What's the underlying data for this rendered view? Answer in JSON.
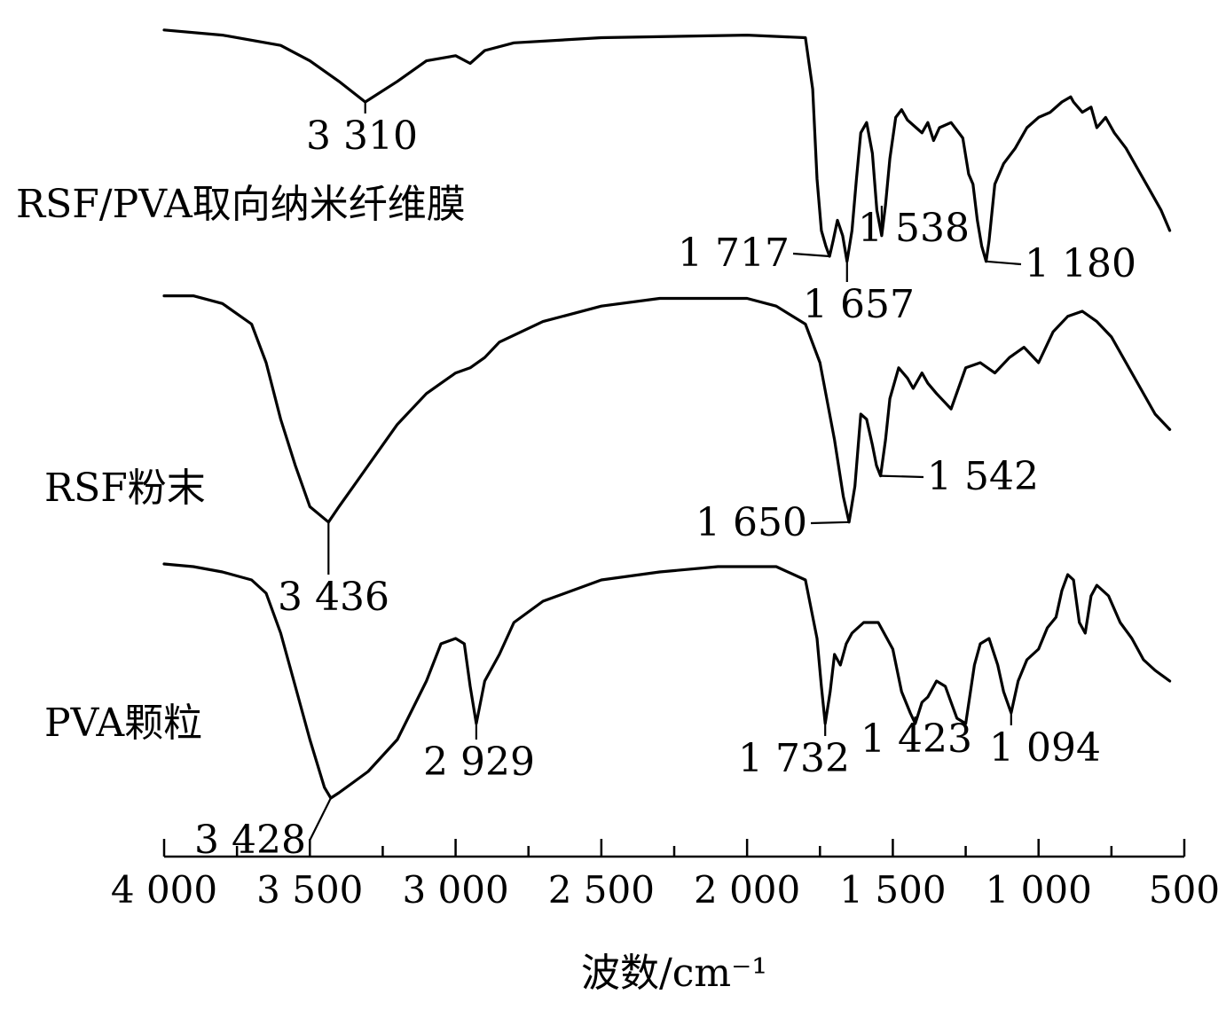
{
  "chart_data": {
    "type": "line",
    "xlabel": "波数/cm⁻¹",
    "ylabel": "",
    "xlim": [
      4000,
      500
    ],
    "x_reversed": true,
    "grid": false,
    "xticks": [
      4000,
      3500,
      3000,
      2500,
      2000,
      1500,
      1000,
      500
    ],
    "xtick_labels": [
      "4 000",
      "3 500",
      "3 000",
      "2 500",
      "2 000",
      "1 500",
      "1 000",
      "500"
    ],
    "series": [
      {
        "name": "RSF/PVA取向纳米纤维膜",
        "x": [
          4000,
          3800,
          3600,
          3500,
          3400,
          3310,
          3200,
          3100,
          3000,
          2950,
          2900,
          2800,
          2500,
          2000,
          1800,
          1775,
          1760,
          1745,
          1730,
          1717,
          1705,
          1690,
          1672,
          1657,
          1640,
          1625,
          1610,
          1590,
          1570,
          1555,
          1538,
          1525,
          1510,
          1490,
          1470,
          1450,
          1420,
          1400,
          1380,
          1360,
          1340,
          1300,
          1260,
          1240,
          1225,
          1210,
          1195,
          1180,
          1170,
          1150,
          1120,
          1080,
          1040,
          1000,
          960,
          920,
          890,
          880,
          850,
          820,
          800,
          770,
          740,
          700,
          660,
          620,
          580,
          550
        ],
        "y": [
          98,
          96,
          92,
          86,
          78,
          70,
          78,
          86,
          88,
          85,
          90,
          93,
          95,
          96,
          95,
          75,
          40,
          20,
          14,
          10,
          16,
          24,
          18,
          8,
          20,
          40,
          58,
          62,
          50,
          28,
          18,
          30,
          48,
          64,
          67,
          63,
          60,
          58,
          62,
          55,
          60,
          62,
          56,
          42,
          38,
          24,
          14,
          8,
          16,
          38,
          46,
          52,
          60,
          64,
          66,
          70,
          72,
          70,
          66,
          68,
          60,
          64,
          58,
          52,
          44,
          36,
          28,
          20
        ]
      },
      {
        "name": "RSF粉末",
        "x": [
          4000,
          3900,
          3800,
          3700,
          3650,
          3600,
          3550,
          3500,
          3436,
          3400,
          3350,
          3300,
          3250,
          3200,
          3150,
          3100,
          3050,
          3000,
          2950,
          2900,
          2850,
          2700,
          2500,
          2300,
          2000,
          1900,
          1800,
          1750,
          1700,
          1670,
          1650,
          1630,
          1610,
          1590,
          1570,
          1556,
          1542,
          1525,
          1510,
          1480,
          1450,
          1430,
          1400,
          1380,
          1350,
          1300,
          1250,
          1200,
          1150,
          1100,
          1050,
          1000,
          950,
          900,
          850,
          800,
          750,
          700,
          650,
          600,
          550
        ],
        "y": [
          96,
          96,
          93,
          85,
          70,
          48,
          30,
          14,
          8,
          14,
          22,
          30,
          38,
          46,
          52,
          58,
          62,
          66,
          68,
          72,
          78,
          86,
          92,
          95,
          95,
          92,
          85,
          70,
          40,
          18,
          8,
          22,
          50,
          48,
          38,
          30,
          26,
          40,
          56,
          68,
          64,
          60,
          66,
          62,
          58,
          52,
          68,
          70,
          66,
          72,
          76,
          70,
          82,
          88,
          90,
          86,
          80,
          70,
          60,
          50,
          44
        ]
      },
      {
        "name": "PVA颗粒",
        "x": [
          4000,
          3900,
          3800,
          3700,
          3650,
          3600,
          3550,
          3500,
          3450,
          3428,
          3400,
          3350,
          3300,
          3200,
          3100,
          3050,
          3000,
          2970,
          2950,
          2929,
          2900,
          2850,
          2800,
          2700,
          2500,
          2300,
          2100,
          2000,
          1900,
          1800,
          1760,
          1745,
          1732,
          1715,
          1700,
          1680,
          1660,
          1640,
          1600,
          1550,
          1500,
          1470,
          1440,
          1423,
          1400,
          1380,
          1350,
          1320,
          1300,
          1280,
          1250,
          1220,
          1200,
          1170,
          1140,
          1120,
          1094,
          1070,
          1040,
          1000,
          970,
          940,
          920,
          900,
          880,
          860,
          840,
          820,
          800,
          760,
          720,
          680,
          640,
          600,
          550
        ],
        "y": [
          96,
          95,
          93,
          90,
          85,
          70,
          50,
          30,
          12,
          8,
          10,
          14,
          18,
          30,
          52,
          66,
          68,
          66,
          50,
          36,
          52,
          62,
          74,
          82,
          90,
          93,
          95,
          95,
          95,
          90,
          68,
          50,
          36,
          48,
          62,
          58,
          66,
          70,
          74,
          74,
          64,
          48,
          40,
          36,
          44,
          46,
          52,
          50,
          44,
          38,
          36,
          58,
          66,
          68,
          58,
          48,
          40,
          52,
          60,
          64,
          72,
          76,
          86,
          92,
          90,
          74,
          70,
          84,
          88,
          84,
          74,
          68,
          60,
          56,
          52
        ]
      }
    ],
    "annotations": [
      {
        "series": "RSF/PVA取向纳米纤维膜",
        "x": 3310,
        "label": "3 310"
      },
      {
        "series": "RSF/PVA取向纳米纤维膜",
        "x": 1717,
        "label": "1 717"
      },
      {
        "series": "RSF/PVA取向纳米纤维膜",
        "x": 1657,
        "label": "1 657"
      },
      {
        "series": "RSF/PVA取向纳米纤维膜",
        "x": 1538,
        "label": "1 538"
      },
      {
        "series": "RSF/PVA取向纳米纤维膜",
        "x": 1180,
        "label": "1 180"
      },
      {
        "series": "RSF粉末",
        "x": 3436,
        "label": "3 436"
      },
      {
        "series": "RSF粉末",
        "x": 1650,
        "label": "1 650"
      },
      {
        "series": "RSF粉末",
        "x": 1542,
        "label": "1 542"
      },
      {
        "series": "PVA颗粒",
        "x": 3428,
        "label": "3 428"
      },
      {
        "series": "PVA颗粒",
        "x": 2929,
        "label": "2 929"
      },
      {
        "series": "PVA颗粒",
        "x": 1732,
        "label": "1 732"
      },
      {
        "series": "PVA颗粒",
        "x": 1423,
        "label": "1 423"
      },
      {
        "series": "PVA颗粒",
        "x": 1094,
        "label": "1 094"
      }
    ]
  }
}
